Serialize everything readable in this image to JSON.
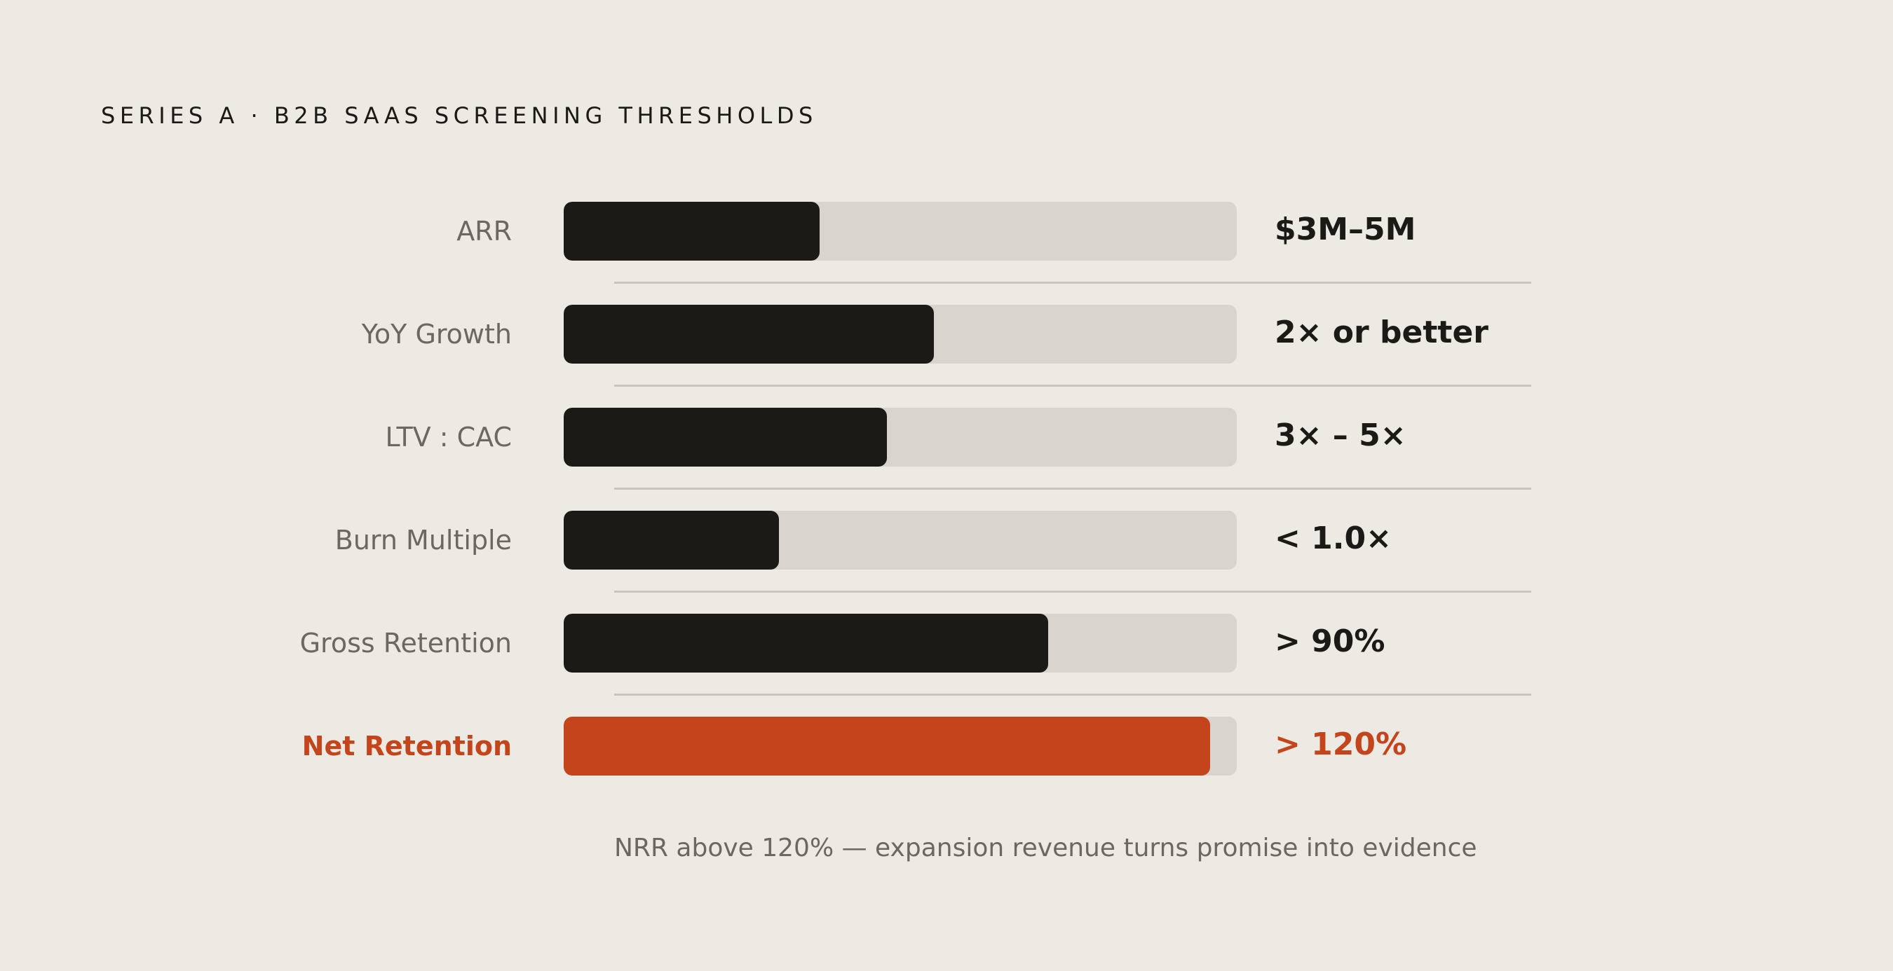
{
  "title": "SERIES A · B2B SAAS SCREENING THRESHOLDS",
  "note": "NRR above 120% — expansion revenue turns promise into evidence",
  "colors": {
    "background": "#edeae3",
    "bar": "#1c1a17",
    "track": "#d9d5ce",
    "accent": "#c4441c",
    "label": "#6b6862",
    "divider": "#c9c5be"
  },
  "chart_data": {
    "type": "bar",
    "orientation": "horizontal",
    "title": "SERIES A · B2B SAAS SCREENING THRESHOLDS",
    "categories": [
      "ARR",
      "YoY Growth",
      "LTV : CAC",
      "Burn Multiple",
      "Gross Retention",
      "Net Retention"
    ],
    "values": [
      0.38,
      0.55,
      0.48,
      0.32,
      0.72,
      0.96
    ],
    "value_labels": [
      "$3M–5M",
      "2× or better",
      "3× – 5×",
      "< 1.0×",
      "> 90%",
      "> 120%"
    ],
    "highlight": [
      false,
      false,
      false,
      false,
      false,
      true
    ],
    "xlim": [
      0,
      1
    ],
    "grid": false,
    "legend": "none"
  }
}
